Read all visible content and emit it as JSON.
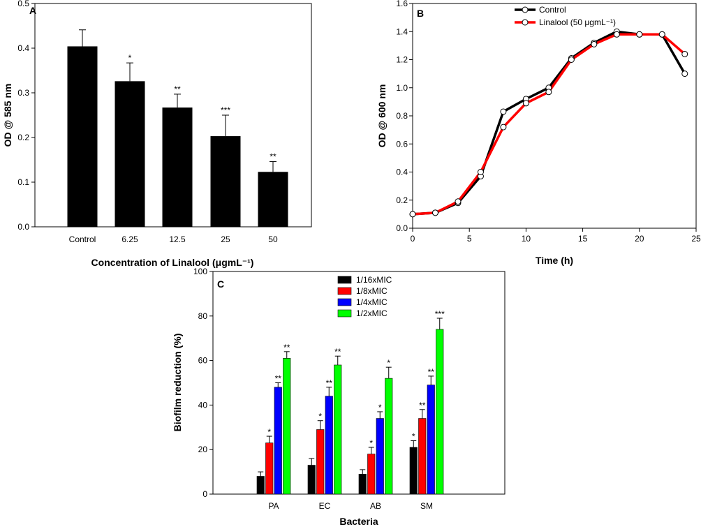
{
  "chart_data": [
    {
      "panel": "A",
      "type": "bar",
      "title": "",
      "xlabel": "Concentration of Linalool (μgmL⁻¹)",
      "ylabel": "OD @ 585 nm",
      "categories": [
        "Control",
        "6.25",
        "12.5",
        "25",
        "50"
      ],
      "values": [
        0.404,
        0.326,
        0.267,
        0.203,
        0.123
      ],
      "errors": [
        0.037,
        0.041,
        0.03,
        0.047,
        0.023
      ],
      "significance": [
        "",
        "*",
        "**",
        "***",
        "**"
      ],
      "ylim": [
        0,
        0.5
      ],
      "yticks": [
        "0.0",
        "0.1",
        "0.2",
        "0.3",
        "0.4",
        "0.5"
      ],
      "bar_color": "#000000"
    },
    {
      "panel": "B",
      "type": "line",
      "title": "",
      "xlabel": "Time (h)",
      "ylabel": "OD @ 600 nm",
      "xlim": [
        0,
        25
      ],
      "ylim": [
        0,
        1.6
      ],
      "xticks": [
        "0",
        "5",
        "10",
        "15",
        "20",
        "25"
      ],
      "yticks": [
        "0.0",
        "0.2",
        "0.4",
        "0.6",
        "0.8",
        "1.0",
        "1.2",
        "1.4",
        "1.6"
      ],
      "legend_position": "top-center",
      "series": [
        {
          "name": "Control",
          "color": "#000000",
          "x": [
            0,
            2,
            4,
            6,
            8,
            10,
            12,
            14,
            16,
            18,
            20,
            22,
            24
          ],
          "y": [
            0.1,
            0.11,
            0.18,
            0.37,
            0.83,
            0.92,
            1.0,
            1.21,
            1.32,
            1.4,
            1.38,
            1.38,
            1.1
          ]
        },
        {
          "name": "Linalool (50 μgmL⁻¹)",
          "color": "#ff0000",
          "x": [
            0,
            2,
            4,
            6,
            8,
            10,
            12,
            14,
            16,
            18,
            20,
            22,
            24
          ],
          "y": [
            0.1,
            0.11,
            0.19,
            0.4,
            0.72,
            0.89,
            0.97,
            1.2,
            1.31,
            1.38,
            1.38,
            1.38,
            1.24
          ]
        }
      ]
    },
    {
      "panel": "C",
      "type": "bar",
      "title": "",
      "xlabel": "Bacteria",
      "ylabel": "Biofilm reduction (%)",
      "categories": [
        "PA",
        "EC",
        "AB",
        "SM"
      ],
      "ylim": [
        0,
        100
      ],
      "yticks": [
        "0",
        "20",
        "40",
        "60",
        "80",
        "100"
      ],
      "legend_position": "top-left",
      "series": [
        {
          "name": "1/16xMIC",
          "color": "#000000",
          "values": [
            8,
            13,
            9,
            21
          ],
          "errors": [
            2,
            3,
            2,
            3
          ],
          "significance": [
            "",
            "",
            "",
            "*"
          ]
        },
        {
          "name": "1/8xMIC",
          "color": "#ff0000",
          "values": [
            23,
            29,
            18,
            34
          ],
          "errors": [
            3,
            4,
            3,
            4
          ],
          "significance": [
            "*",
            "*",
            "*",
            "**"
          ]
        },
        {
          "name": "1/4xMIC",
          "color": "#0000ff",
          "values": [
            48,
            44,
            34,
            49
          ],
          "errors": [
            2,
            4,
            3,
            4
          ],
          "significance": [
            "**",
            "**",
            "*",
            "**"
          ]
        },
        {
          "name": "1/2xMIC",
          "color": "#00ff00",
          "values": [
            61,
            58,
            52,
            74
          ],
          "errors": [
            3,
            4,
            5,
            5
          ],
          "significance": [
            "**",
            "**",
            "*",
            "***"
          ]
        }
      ]
    }
  ]
}
